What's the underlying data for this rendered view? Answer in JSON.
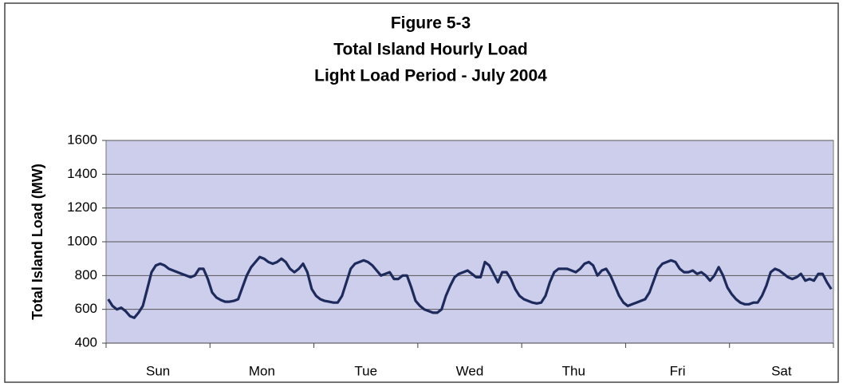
{
  "chart_data": {
    "type": "line",
    "title": [
      "Figure 5-3",
      "Total Island Hourly Load",
      "Light Load Period - July 2004"
    ],
    "ylabel": "Total Island Load (MW)",
    "categories": [
      "Sun",
      "Mon",
      "Tue",
      "Wed",
      "Thu",
      "Fri",
      "Sat"
    ],
    "values": [
      [
        660,
        620,
        600,
        610,
        590,
        560,
        550,
        580,
        620,
        720,
        820,
        860,
        870,
        860,
        840,
        830,
        820,
        810,
        800,
        790,
        800,
        840,
        840,
        780
      ],
      [
        700,
        670,
        655,
        645,
        645,
        650,
        660,
        730,
        800,
        850,
        880,
        910,
        900,
        880,
        870,
        880,
        900,
        880,
        840,
        820,
        840,
        870,
        820,
        720
      ],
      [
        680,
        660,
        650,
        645,
        640,
        640,
        680,
        760,
        840,
        870,
        880,
        890,
        880,
        860,
        830,
        800,
        810,
        820,
        780,
        780,
        800,
        800,
        730,
        650
      ],
      [
        620,
        600,
        590,
        580,
        580,
        600,
        680,
        740,
        790,
        810,
        820,
        830,
        810,
        790,
        790,
        880,
        860,
        810,
        760,
        820,
        820,
        780,
        720,
        680
      ],
      [
        660,
        650,
        640,
        635,
        640,
        680,
        760,
        820,
        840,
        840,
        840,
        830,
        820,
        840,
        870,
        880,
        860,
        800,
        830,
        840,
        800,
        740,
        680,
        640
      ],
      [
        620,
        630,
        640,
        650,
        660,
        700,
        770,
        840,
        870,
        880,
        890,
        880,
        840,
        820,
        820,
        830,
        810,
        820,
        800,
        770,
        800,
        850,
        800,
        730
      ],
      [
        690,
        660,
        640,
        630,
        630,
        640,
        640,
        680,
        740,
        820,
        840,
        830,
        810,
        790,
        780,
        790,
        810,
        770,
        780,
        770,
        810,
        810,
        760,
        720
      ]
    ],
    "color": "#1c2a5c",
    "ylim": [
      400,
      1600
    ],
    "yticks": [
      400,
      600,
      800,
      1000,
      1200,
      1400,
      1600
    ],
    "grid": true
  }
}
